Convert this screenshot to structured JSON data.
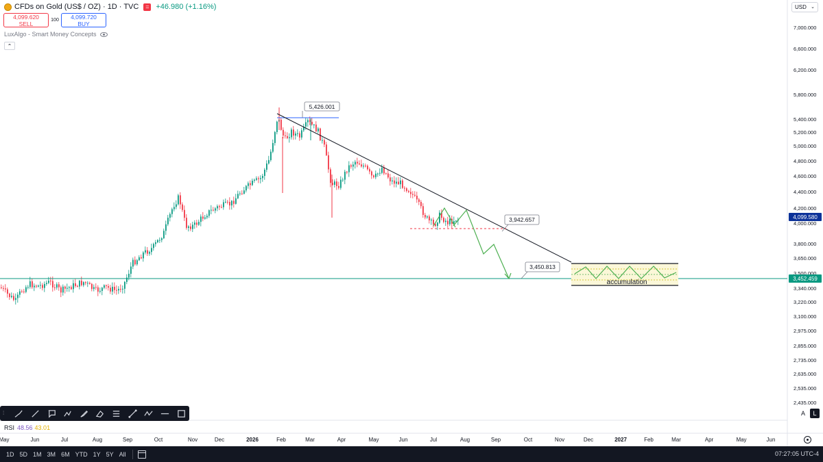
{
  "header": {
    "title": "CFDs on Gold (US$ / OZ) · 1D · TVC",
    "change": "+46.980 (+1.16%)"
  },
  "trade": {
    "sell_price": "4,099.620",
    "sell_label": "SELL",
    "spread": "100",
    "buy_price": "4,099.720",
    "buy_label": "BUY"
  },
  "indicator": {
    "name": "LuxAlgo - Smart Money Concepts"
  },
  "currency": "USD",
  "price_axis": {
    "labels": [
      "7,000.000",
      "6,600.000",
      "6,200.000",
      "5,800.000",
      "5,400.000",
      "5,200.000",
      "5,000.000",
      "4,800.000",
      "4,600.000",
      "4,400.000",
      "4,200.000",
      "4,000.000",
      "3,800.000",
      "3,650.000",
      "3,500.000",
      "3,340.000",
      "3,220.000",
      "3,100.000",
      "2,975.000",
      "2,855.000",
      "2,735.000",
      "2,635.000",
      "2,535.000",
      "2,435.000"
    ],
    "current_price": "4,099.580",
    "green_line_price": "3,452.459"
  },
  "time_axis": {
    "labels": [
      "May",
      "Jun",
      "Jul",
      "Aug",
      "Sep",
      "Oct",
      "Nov",
      "Dec",
      "2026",
      "Feb",
      "Mar",
      "Apr",
      "May",
      "Jun",
      "Jul",
      "Aug",
      "Sep",
      "Oct",
      "Nov",
      "Dec",
      "2027",
      "Feb",
      "Mar",
      "Apr",
      "May",
      "Jun"
    ]
  },
  "annotations": {
    "high": "5,426.001",
    "mid": "3,942.657",
    "target": "3,450.813",
    "zone": "accumulation"
  },
  "rsi": {
    "label": "RSI",
    "value1": "48.56",
    "value2": "43.01"
  },
  "scale": {
    "auto": "A",
    "log": "L"
  },
  "ranges": [
    "1D",
    "5D",
    "1M",
    "3M",
    "6M",
    "YTD",
    "1Y",
    "5Y",
    "All"
  ],
  "clock": "07:27:05 UTC-4",
  "colors": {
    "up": "#089981",
    "down": "#f23645",
    "projection": "#4caf50",
    "trend": "#131722",
    "accent": "#2962ff"
  },
  "chart_data": {
    "type": "candlestick",
    "symbol": "CFDs on Gold (US$ / OZ)",
    "interval": "1D",
    "dates": [
      "2025-05",
      "2025-06",
      "2025-07",
      "2025-08",
      "2025-09",
      "2025-10",
      "2025-11",
      "2025-12",
      "2026-01",
      "2026-02",
      "2026-03",
      "2026-04",
      "2026-05",
      "2026-06",
      "2026-07"
    ],
    "approx_close": [
      3300,
      3350,
      3320,
      3380,
      3600,
      4000,
      4100,
      4300,
      4800,
      5100,
      4900,
      4700,
      4500,
      4150,
      4100
    ],
    "projection_path": [
      4100,
      4180,
      3950,
      3700,
      3450
    ]
  }
}
